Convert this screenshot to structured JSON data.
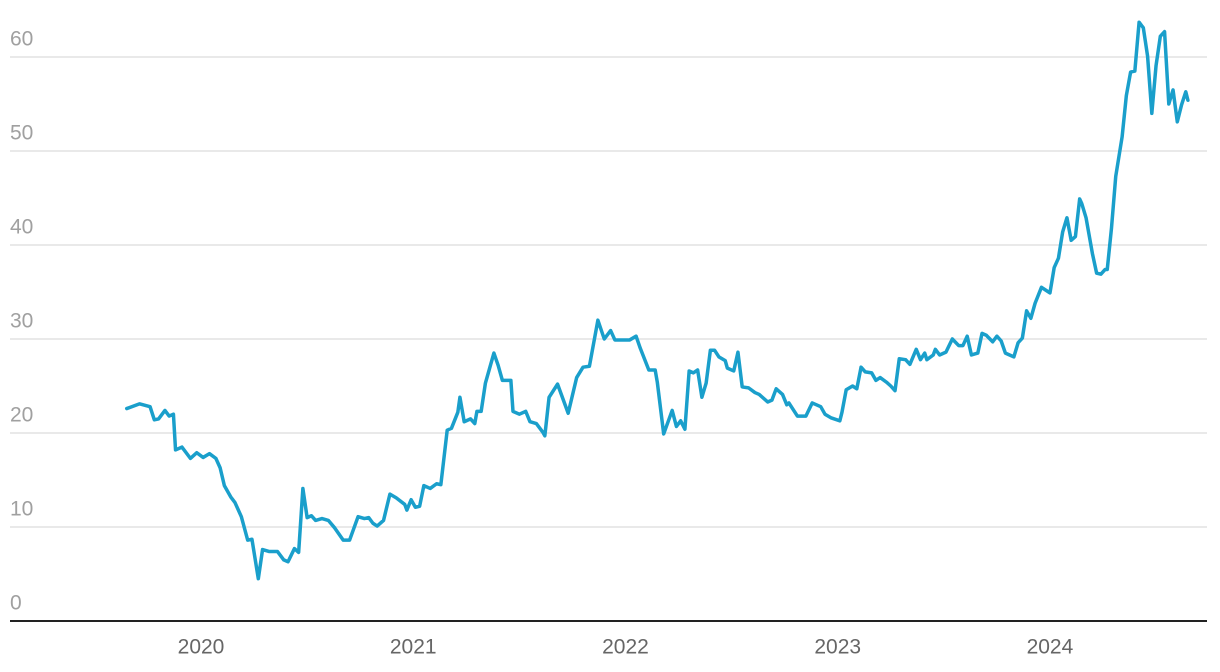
{
  "chart_data": {
    "type": "line",
    "color": "#1a9fcb",
    "grid": true,
    "xlim": [
      2019.1,
      2024.74
    ],
    "xticks": [
      2020,
      2021,
      2022,
      2023,
      2024
    ],
    "ylim": [
      0,
      64
    ],
    "yticks": [
      0,
      10,
      20,
      30,
      40,
      50,
      60
    ],
    "x": [
      2019.65,
      2019.71,
      2019.76,
      2019.78,
      2019.8,
      2019.83,
      2019.85,
      2019.87,
      2019.88,
      2019.91,
      2019.95,
      2019.98,
      2020.01,
      2020.04,
      2020.07,
      2020.09,
      2020.11,
      2020.14,
      2020.16,
      2020.19,
      2020.22,
      2020.24,
      2020.27,
      2020.29,
      2020.32,
      2020.36,
      2020.39,
      2020.41,
      2020.44,
      2020.46,
      2020.48,
      2020.5,
      2020.52,
      2020.54,
      2020.57,
      2020.6,
      2020.63,
      2020.67,
      2020.7,
      2020.74,
      2020.77,
      2020.79,
      2020.81,
      2020.83,
      2020.86,
      2020.89,
      2020.92,
      2020.96,
      2020.97,
      2020.99,
      2021.01,
      2021.03,
      2021.05,
      2021.08,
      2021.11,
      2021.13,
      2021.16,
      2021.18,
      2021.21,
      2021.22,
      2021.24,
      2021.27,
      2021.29,
      2021.3,
      2021.32,
      2021.34,
      2021.38,
      2021.4,
      2021.42,
      2021.46,
      2021.47,
      2021.5,
      2021.53,
      2021.55,
      2021.58,
      2021.61,
      2021.62,
      2021.64,
      2021.68,
      2021.73,
      2021.77,
      2021.8,
      2021.83,
      2021.87,
      2021.9,
      2021.93,
      2021.95,
      2022.02,
      2022.05,
      2022.07,
      2022.11,
      2022.14,
      2022.15,
      2022.18,
      2022.22,
      2022.24,
      2022.26,
      2022.28,
      2022.3,
      2022.32,
      2022.34,
      2022.36,
      2022.38,
      2022.4,
      2022.42,
      2022.44,
      2022.47,
      2022.48,
      2022.51,
      2022.53,
      2022.55,
      2022.58,
      2022.61,
      2022.63,
      2022.67,
      2022.69,
      2022.71,
      2022.74,
      2022.76,
      2022.77,
      2022.81,
      2022.85,
      2022.88,
      2022.92,
      2022.94,
      2022.97,
      2023.01,
      2023.02,
      2023.04,
      2023.07,
      2023.09,
      2023.11,
      2023.13,
      2023.16,
      2023.18,
      2023.2,
      2023.23,
      2023.25,
      2023.27,
      2023.29,
      2023.32,
      2023.34,
      2023.37,
      2023.39,
      2023.41,
      2023.42,
      2023.45,
      2023.46,
      2023.48,
      2023.51,
      2023.54,
      2023.57,
      2023.59,
      2023.61,
      2023.63,
      2023.66,
      2023.68,
      2023.7,
      2023.73,
      2023.75,
      2023.77,
      2023.79,
      2023.83,
      2023.85,
      2023.87,
      2023.89,
      2023.91,
      2023.93,
      2023.96,
      2023.98,
      2024.0,
      2024.02,
      2024.04,
      2024.06,
      2024.08,
      2024.1,
      2024.12,
      2024.14,
      2024.15,
      2024.17,
      2024.2,
      2024.22,
      2024.24,
      2024.26,
      2024.27,
      2024.29,
      2024.31,
      2024.34,
      2024.36,
      2024.38,
      2024.4,
      2024.42,
      2024.44,
      2024.46,
      2024.48,
      2024.5,
      2024.52,
      2024.54,
      2024.56,
      2024.58,
      2024.6,
      2024.62,
      2024.64,
      2024.65
    ],
    "values": [
      22.6,
      23.1,
      22.8,
      21.4,
      21.5,
      22.4,
      21.8,
      22.0,
      18.2,
      18.5,
      17.3,
      17.9,
      17.4,
      17.8,
      17.3,
      16.3,
      14.4,
      13.2,
      12.6,
      11.1,
      8.6,
      8.7,
      4.5,
      7.6,
      7.4,
      7.4,
      6.5,
      6.3,
      7.7,
      7.3,
      14.1,
      11.0,
      11.2,
      10.7,
      10.9,
      10.7,
      9.9,
      8.6,
      8.6,
      11.1,
      10.9,
      11.0,
      10.4,
      10.1,
      10.7,
      13.5,
      13.1,
      12.4,
      11.8,
      12.9,
      12.1,
      12.2,
      14.4,
      14.1,
      14.6,
      14.5,
      20.3,
      20.5,
      22.2,
      23.8,
      21.2,
      21.5,
      21.0,
      22.3,
      22.3,
      25.3,
      28.5,
      27.2,
      25.6,
      25.6,
      22.3,
      22.0,
      22.3,
      21.2,
      21.0,
      20.1,
      19.7,
      23.8,
      25.2,
      22.1,
      25.9,
      27.0,
      27.1,
      32.0,
      30.0,
      30.9,
      29.9,
      29.9,
      30.3,
      29.0,
      26.7,
      26.7,
      25.4,
      19.9,
      22.4,
      20.7,
      21.3,
      20.4,
      26.6,
      26.4,
      26.7,
      23.8,
      25.3,
      28.8,
      28.8,
      28.1,
      27.7,
      26.9,
      26.6,
      28.6,
      24.9,
      24.8,
      24.3,
      24.1,
      23.3,
      23.5,
      24.7,
      24.1,
      23.0,
      23.2,
      21.8,
      21.8,
      23.2,
      22.8,
      22.0,
      21.6,
      21.3,
      22.2,
      24.6,
      25.0,
      24.7,
      27.0,
      26.5,
      26.4,
      25.6,
      25.9,
      25.4,
      25.0,
      24.5,
      27.9,
      27.8,
      27.3,
      28.9,
      27.8,
      28.5,
      27.8,
      28.3,
      28.9,
      28.3,
      28.6,
      30.0,
      29.3,
      29.3,
      30.3,
      28.3,
      28.5,
      30.6,
      30.4,
      29.7,
      30.3,
      29.8,
      28.5,
      28.1,
      29.6,
      30.1,
      33.0,
      32.2,
      33.8,
      35.5,
      35.2,
      34.9,
      37.6,
      38.6,
      41.4,
      42.9,
      40.5,
      40.9,
      44.9,
      44.4,
      42.9,
      39.1,
      37.0,
      36.9,
      37.4,
      37.4,
      41.8,
      47.3,
      51.5,
      55.9,
      58.4,
      58.5,
      63.7,
      63.1,
      60.1,
      54.0,
      59.1,
      62.2,
      62.7,
      55.0,
      56.5,
      53.1,
      54.9,
      56.3,
      55.4
    ]
  }
}
